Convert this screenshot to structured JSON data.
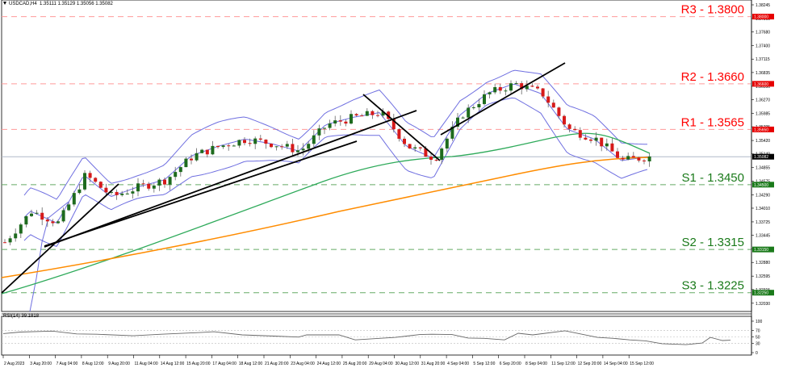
{
  "header": {
    "symbol": "USDCAD,H4",
    "ohlc": "1.35111 1.35129 1.35056 1.35082"
  },
  "colors": {
    "resistance": "#ff0000",
    "resistance_line": "#ff9a9a",
    "support": "#1a7a1a",
    "support_line": "#66aa66",
    "bull_candle": "#1e6b1e",
    "bear_candle": "#d61a1a",
    "bollinger": "#6f6fe0",
    "ma_green": "#2eaa5a",
    "ma_orange": "#ff8c00",
    "trendline": "#000000",
    "current_price_box": "#000000"
  },
  "levels": [
    {
      "id": "R3",
      "label": "R3 - 1.3800",
      "price": 1.38,
      "axis_label": "1.38000",
      "type": "resistance"
    },
    {
      "id": "R2",
      "label": "R2 - 1.3660",
      "price": 1.366,
      "axis_label": "1.36600",
      "type": "resistance"
    },
    {
      "id": "R1",
      "label": "R1 - 1.3565",
      "price": 1.3565,
      "axis_label": "1.35650",
      "type": "resistance"
    },
    {
      "id": "S1",
      "label": "S1 - 1.3450",
      "price": 1.345,
      "axis_label": "1.34500",
      "type": "support"
    },
    {
      "id": "S2",
      "label": "S2 - 1.3315",
      "price": 1.3315,
      "axis_label": "1.33150",
      "type": "support"
    },
    {
      "id": "S3",
      "label": "S3 - 1.3225",
      "price": 1.3225,
      "axis_label": "1.32250",
      "type": "support"
    }
  ],
  "current_price": {
    "value": 1.35082,
    "label": "1.35082"
  },
  "price_axis": {
    "ticks": [
      "1.38245",
      "1.37960",
      "1.37680",
      "1.37400",
      "1.37115",
      "1.36835",
      "1.36550",
      "1.36270",
      "1.35985",
      "1.35705",
      "1.35420",
      "1.35140",
      "1.34855",
      "1.34575",
      "1.34290",
      "1.34010",
      "1.33725",
      "1.33445",
      "1.33165",
      "1.32880",
      "1.32595",
      "1.32315",
      "1.32030",
      "1.31750"
    ]
  },
  "time_axis": {
    "labels": [
      "2 Aug 2023",
      "3 Aug 20:00",
      "7 Aug 04:00",
      "8 Aug 12:00",
      "9 Aug 20:00",
      "11 Aug 04:00",
      "14 Aug 12:00",
      "15 Aug 20:00",
      "17 Aug 04:00",
      "18 Aug 12:00",
      "21 Aug 20:00",
      "23 Aug 04:00",
      "24 Aug 12:00",
      "25 Aug 20:00",
      "29 Aug 04:00",
      "30 Aug 12:00",
      "31 Aug 20:00",
      "4 Sep 04:00",
      "5 Sep 12:00",
      "6 Sep 20:00",
      "8 Sep 04:00",
      "11 Sep 12:00",
      "12 Sep 20:00",
      "14 Sep 04:00",
      "15 Sep 12:00"
    ]
  },
  "rsi": {
    "label": "RSI(14) 39.1818",
    "levels": [
      "100",
      "70",
      "50",
      "30",
      "0"
    ]
  },
  "chart_data": {
    "type": "candlestick",
    "title": "USDCAD,H4",
    "instrument": "USDCAD",
    "timeframe": "H4",
    "ohlc_last": {
      "open": 1.35111,
      "high": 1.35129,
      "low": 1.35056,
      "close": 1.35082
    },
    "x_range": [
      "2 Aug 2023",
      "15 Sep 12:00"
    ],
    "ylim": [
      1.3175,
      1.38245
    ],
    "horizontal_levels": {
      "R3": 1.38,
      "R2": 1.366,
      "R1": 1.3565,
      "S1": 1.345,
      "S2": 1.3315,
      "S3": 1.3225
    },
    "approx_close_path": [
      {
        "t": "2 Aug 2023",
        "close": 1.333
      },
      {
        "t": "3 Aug 20:00",
        "close": 1.3395
      },
      {
        "t": "7 Aug 04:00",
        "close": 1.337
      },
      {
        "t": "8 Aug 12:00",
        "close": 1.347
      },
      {
        "t": "9 Aug 20:00",
        "close": 1.3425
      },
      {
        "t": "11 Aug 04:00",
        "close": 1.3445
      },
      {
        "t": "14 Aug 12:00",
        "close": 1.346
      },
      {
        "t": "15 Aug 20:00",
        "close": 1.351
      },
      {
        "t": "17 Aug 04:00",
        "close": 1.353
      },
      {
        "t": "18 Aug 12:00",
        "close": 1.3545
      },
      {
        "t": "21 Aug 20:00",
        "close": 1.3535
      },
      {
        "t": "23 Aug 04:00",
        "close": 1.352
      },
      {
        "t": "24 Aug 12:00",
        "close": 1.3575
      },
      {
        "t": "25 Aug 20:00",
        "close": 1.359
      },
      {
        "t": "29 Aug 04:00",
        "close": 1.36
      },
      {
        "t": "30 Aug 12:00",
        "close": 1.353
      },
      {
        "t": "31 Aug 20:00",
        "close": 1.3505
      },
      {
        "t": "4 Sep 04:00",
        "close": 1.3595
      },
      {
        "t": "5 Sep 12:00",
        "close": 1.364
      },
      {
        "t": "6 Sep 20:00",
        "close": 1.366
      },
      {
        "t": "8 Sep 04:00",
        "close": 1.364
      },
      {
        "t": "11 Sep 12:00",
        "close": 1.3565
      },
      {
        "t": "12 Sep 20:00",
        "close": 1.3545
      },
      {
        "t": "14 Sep 04:00",
        "close": 1.35
      },
      {
        "t": "15 Sep 12:00",
        "close": 1.35082
      }
    ],
    "indicators": [
      "Bollinger Bands",
      "Moving Average (green)",
      "Moving Average (orange)",
      "RSI(14)"
    ],
    "rsi_last": 39.1818,
    "rsi_levels": [
      70,
      50,
      30
    ],
    "annotations": [
      "trendlines (black)",
      "support/resistance dashed lines"
    ],
    "grid": false,
    "legend": "right-side level labels"
  }
}
